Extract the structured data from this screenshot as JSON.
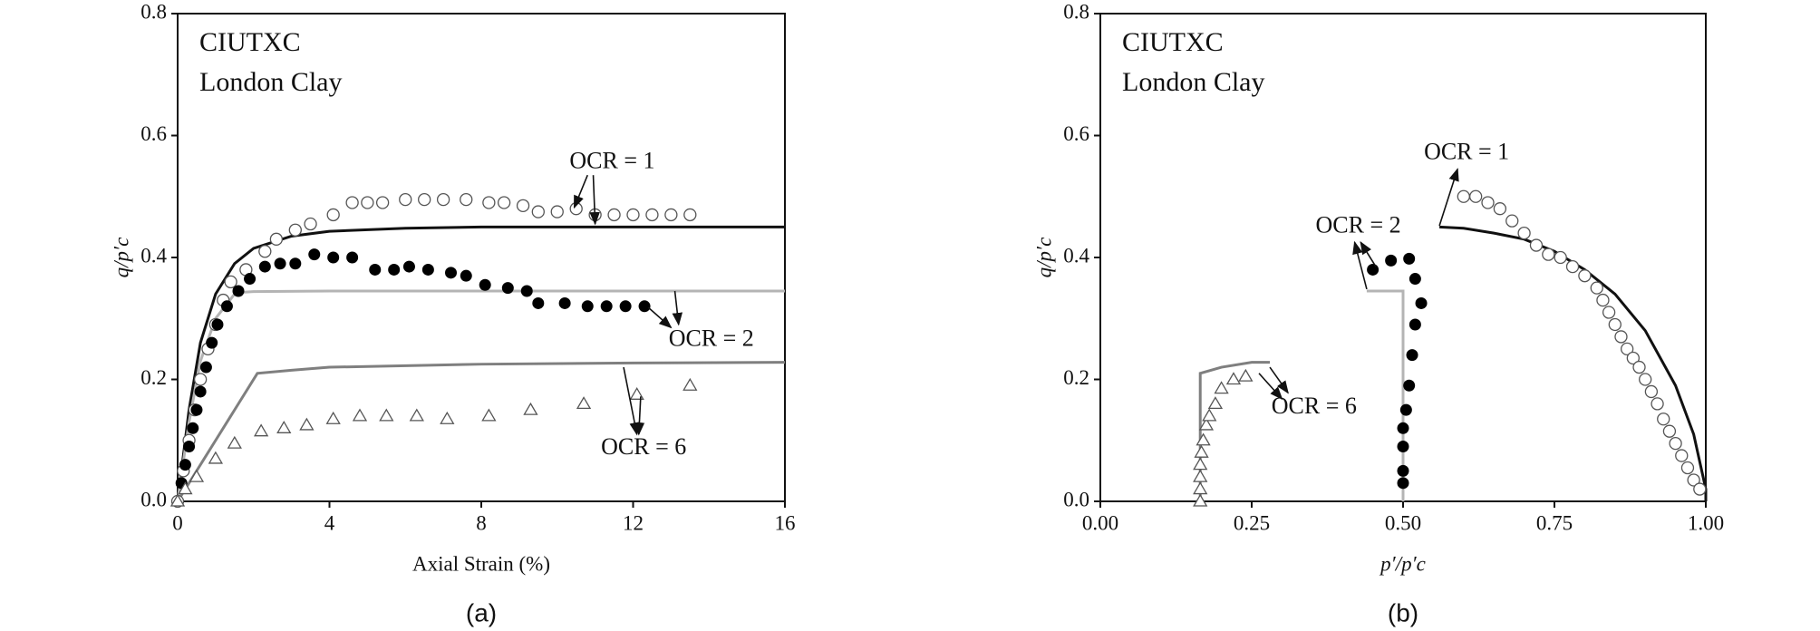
{
  "chart_data": [
    {
      "type": "line",
      "caption": "(a)",
      "title_lines": [
        "CIUTXC",
        "London Clay"
      ],
      "x_label": "Axial Strain (%)",
      "y_label": "q/p′c",
      "xlim": [
        0,
        16
      ],
      "xticks": [
        0,
        4,
        8,
        12,
        16
      ],
      "ylim": [
        0,
        0.8
      ],
      "yticks": [
        {
          "value": 0,
          "label": "0.0"
        },
        0.2,
        0.4,
        0.6,
        0.8
      ],
      "annotations": [
        "OCR = 1",
        "OCR = 2",
        "OCR = 6"
      ],
      "series": [
        {
          "style": "line",
          "color": "#111111",
          "x": [
            0,
            0.3,
            0.6,
            1,
            1.5,
            2,
            3,
            4,
            6,
            8,
            12,
            16
          ],
          "values": [
            0,
            0.15,
            0.26,
            0.34,
            0.39,
            0.415,
            0.435,
            0.443,
            0.448,
            0.45,
            0.45,
            0.45
          ]
        },
        {
          "style": "line",
          "color": "#b4b4b4",
          "x": [
            0,
            0.3,
            0.6,
            1,
            1.5,
            1.7,
            2,
            4,
            8,
            16
          ],
          "values": [
            0,
            0.13,
            0.23,
            0.3,
            0.34,
            0.343,
            0.344,
            0.345,
            0.345,
            0.345
          ]
        },
        {
          "style": "line",
          "color": "#7f7f7f",
          "x": [
            0,
            0.5,
            1,
            1.5,
            2.1,
            3,
            4,
            8,
            12,
            16
          ],
          "values": [
            0,
            0.05,
            0.1,
            0.15,
            0.21,
            0.215,
            0.22,
            0.225,
            0.227,
            0.228
          ]
        },
        {
          "style": "open-circle",
          "color": "#555555",
          "x": [
            0,
            0.15,
            0.3,
            0.45,
            0.6,
            0.8,
            1,
            1.2,
            1.4,
            1.8,
            2.3,
            2.6,
            3.1,
            3.5,
            4.1,
            4.6,
            5,
            5.4,
            6,
            6.5,
            7,
            7.6,
            8.2,
            8.6,
            9.1,
            9.5,
            10,
            10.5,
            11,
            11.5,
            12,
            12.5,
            13,
            13.5
          ],
          "values": [
            0,
            0.05,
            0.1,
            0.15,
            0.2,
            0.25,
            0.29,
            0.33,
            0.36,
            0.38,
            0.41,
            0.43,
            0.445,
            0.455,
            0.47,
            0.49,
            0.49,
            0.49,
            0.495,
            0.495,
            0.495,
            0.495,
            0.49,
            0.49,
            0.485,
            0.475,
            0.475,
            0.48,
            0.47,
            0.47,
            0.47,
            0.47,
            0.47,
            0.47
          ]
        },
        {
          "style": "filled-circle",
          "color": "#000000",
          "x": [
            0.1,
            0.2,
            0.3,
            0.4,
            0.5,
            0.6,
            0.75,
            0.9,
            1.05,
            1.3,
            1.6,
            1.9,
            2.3,
            2.7,
            3.1,
            3.6,
            4.1,
            4.6,
            5.2,
            5.7,
            6.1,
            6.6,
            7.2,
            7.6,
            8.1,
            8.7,
            9.2,
            9.5,
            10.2,
            10.8,
            11.3,
            11.8,
            12.3
          ],
          "values": [
            0.03,
            0.06,
            0.09,
            0.12,
            0.15,
            0.18,
            0.22,
            0.26,
            0.29,
            0.32,
            0.345,
            0.365,
            0.385,
            0.39,
            0.39,
            0.405,
            0.4,
            0.4,
            0.38,
            0.38,
            0.385,
            0.38,
            0.375,
            0.37,
            0.355,
            0.35,
            0.345,
            0.325,
            0.325,
            0.32,
            0.32,
            0.32,
            0.32
          ]
        },
        {
          "style": "open-triangle",
          "color": "#555555",
          "x": [
            0,
            0.2,
            0.5,
            1,
            1.5,
            2.2,
            2.8,
            3.4,
            4.1,
            4.8,
            5.5,
            6.3,
            7.1,
            8.2,
            9.3,
            10.7,
            12.1,
            13.5
          ],
          "values": [
            0,
            0.02,
            0.04,
            0.07,
            0.095,
            0.115,
            0.12,
            0.125,
            0.135,
            0.14,
            0.14,
            0.14,
            0.135,
            0.14,
            0.15,
            0.16,
            0.175,
            0.19
          ]
        }
      ]
    },
    {
      "type": "line",
      "caption": "(b)",
      "title_lines": [
        "CIUTXC",
        "London Clay"
      ],
      "x_label": "p′/p′c",
      "y_label": "q/p′c",
      "xlim": [
        0,
        1
      ],
      "xticks": [
        {
          "value": 0,
          "label": "0.00"
        },
        0.25,
        {
          "value": 0.5,
          "label": "0.50"
        },
        0.75,
        {
          "value": 1,
          "label": "1.00"
        }
      ],
      "ylim": [
        0,
        0.8
      ],
      "yticks": [
        {
          "value": 0,
          "label": "0.0"
        },
        0.2,
        0.4,
        0.6,
        0.8
      ],
      "annotations": [
        "OCR = 1",
        "OCR = 2",
        "OCR = 6"
      ],
      "series": [
        {
          "style": "line",
          "color": "#111111",
          "x": [
            0.56,
            0.6,
            0.65,
            0.7,
            0.75,
            0.8,
            0.85,
            0.9,
            0.95,
            0.98,
            1.0,
            1.0
          ],
          "values": [
            0.45,
            0.448,
            0.44,
            0.43,
            0.41,
            0.38,
            0.34,
            0.28,
            0.19,
            0.11,
            0.02,
            0
          ]
        },
        {
          "style": "line",
          "color": "#b4b4b4",
          "x": [
            0.44,
            0.5,
            0.5
          ],
          "values": [
            0.345,
            0.345,
            0
          ]
        },
        {
          "style": "line",
          "color": "#7f7f7f",
          "x": [
            0.165,
            0.165,
            0.2,
            0.25,
            0.28
          ],
          "values": [
            0,
            0.21,
            0.22,
            0.228,
            0.228
          ]
        },
        {
          "style": "open-circle",
          "color": "#555555",
          "x": [
            0.6,
            0.62,
            0.64,
            0.66,
            0.68,
            0.7,
            0.72,
            0.74,
            0.76,
            0.78,
            0.8,
            0.82,
            0.83,
            0.84,
            0.85,
            0.86,
            0.87,
            0.88,
            0.89,
            0.9,
            0.91,
            0.92,
            0.93,
            0.94,
            0.95,
            0.96,
            0.97,
            0.98,
            0.99
          ],
          "values": [
            0.5,
            0.5,
            0.49,
            0.48,
            0.46,
            0.44,
            0.42,
            0.405,
            0.4,
            0.385,
            0.37,
            0.35,
            0.33,
            0.31,
            0.29,
            0.27,
            0.25,
            0.235,
            0.22,
            0.2,
            0.18,
            0.16,
            0.135,
            0.115,
            0.095,
            0.075,
            0.055,
            0.035,
            0.02
          ]
        },
        {
          "style": "filled-circle",
          "color": "#000000",
          "x": [
            0.45,
            0.48,
            0.51,
            0.52,
            0.53,
            0.52,
            0.515,
            0.51,
            0.505,
            0.5,
            0.5,
            0.5,
            0.5
          ],
          "values": [
            0.38,
            0.395,
            0.398,
            0.365,
            0.325,
            0.29,
            0.24,
            0.19,
            0.15,
            0.12,
            0.09,
            0.05,
            0.03
          ]
        },
        {
          "style": "open-triangle",
          "color": "#555555",
          "x": [
            0.165,
            0.165,
            0.165,
            0.165,
            0.167,
            0.17,
            0.175,
            0.18,
            0.19,
            0.2,
            0.22,
            0.24
          ],
          "values": [
            0,
            0.02,
            0.04,
            0.06,
            0.08,
            0.1,
            0.125,
            0.14,
            0.16,
            0.185,
            0.2,
            0.205
          ]
        }
      ]
    }
  ]
}
